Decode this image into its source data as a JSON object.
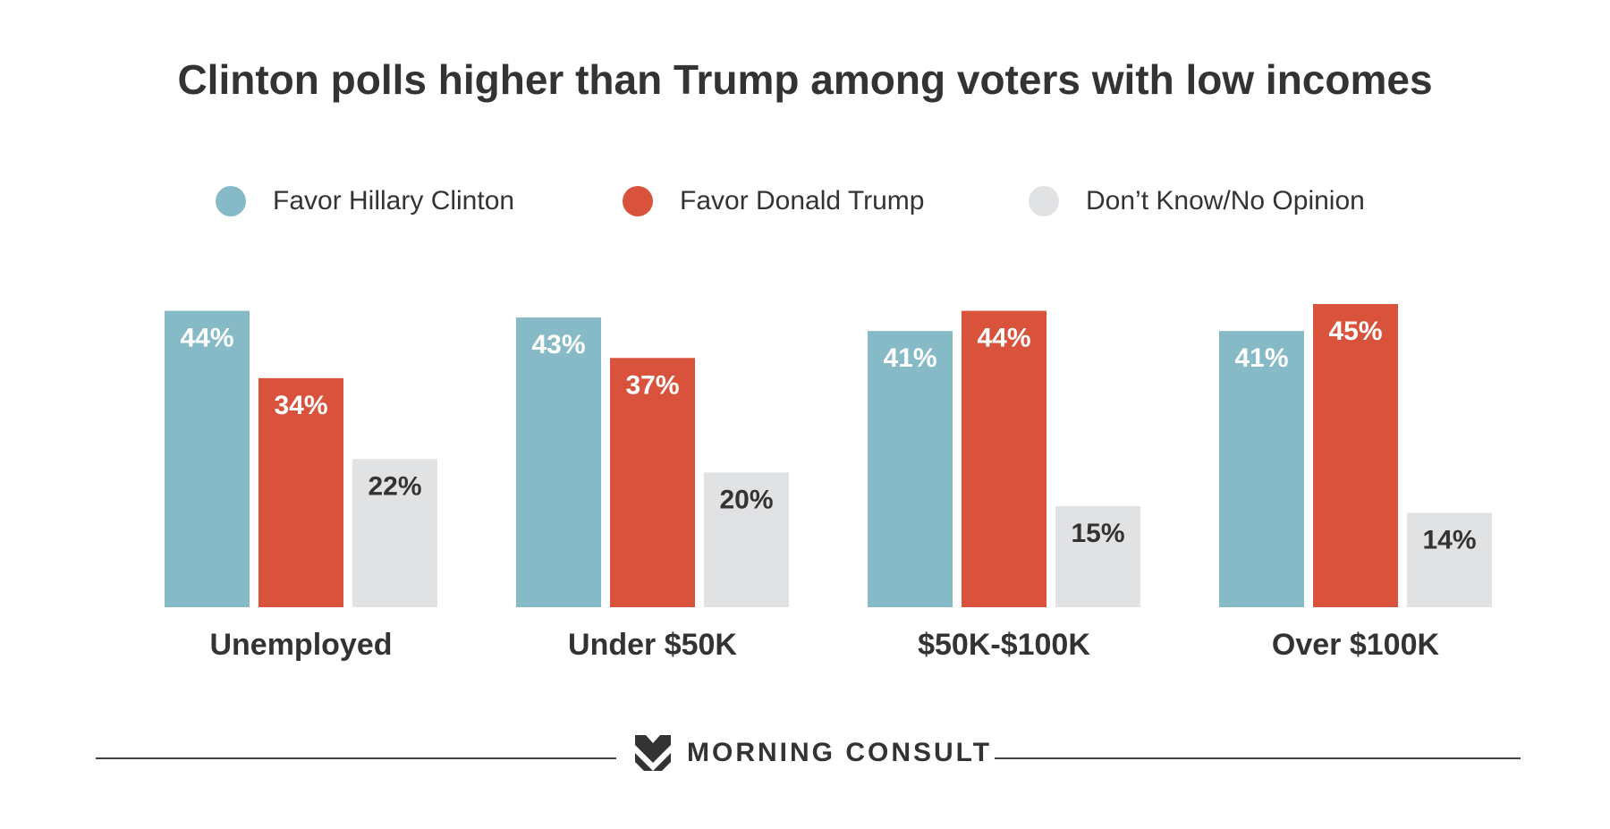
{
  "chart_data": {
    "type": "bar",
    "title": "Clinton polls higher than Trump among voters with low incomes",
    "categories": [
      "Unemployed",
      "Under $50K",
      "$50K-$100K",
      "Over $100K"
    ],
    "series": [
      {
        "name": "Favor Hillary Clinton",
        "values": [
          44,
          43,
          41,
          41
        ],
        "labels": [
          "44%",
          "43%",
          "41%",
          "41%"
        ],
        "color": "#86bac6",
        "label_color": "#ffffff"
      },
      {
        "name": "Favor Donald Trump",
        "values": [
          34,
          37,
          44,
          45
        ],
        "labels": [
          "34%",
          "37%",
          "44%",
          "45%"
        ],
        "color": "#d9533c",
        "label_color": "#ffffff"
      },
      {
        "name": "Don’t Know/No Opinion",
        "values": [
          22,
          20,
          15,
          14
        ],
        "labels": [
          "22%",
          "20%",
          "15%",
          "14%"
        ],
        "color": "#e1e2e4",
        "label_color": "#333333"
      }
    ],
    "ylim": [
      0,
      45
    ],
    "grid": false,
    "legend": "top"
  },
  "footer": {
    "brand": "MORNING CONSULT",
    "logo_icon": "morning-consult-chevron-logo"
  }
}
